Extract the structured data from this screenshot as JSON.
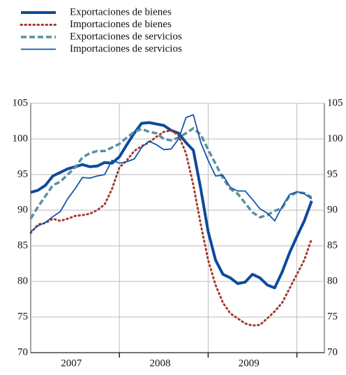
{
  "chart_data": {
    "type": "line",
    "categories": [
      null,
      null,
      null,
      null,
      null,
      null,
      "2007",
      null,
      null,
      null,
      null,
      null,
      null,
      null,
      null,
      null,
      null,
      null,
      "2008",
      null,
      null,
      null,
      null,
      null,
      null,
      null,
      null,
      null,
      null,
      null,
      "2009",
      null,
      null,
      null,
      null,
      null,
      null,
      null,
      null
    ],
    "series": [
      {
        "name": "Exportaciones de bienes",
        "color": "#0d4a9c",
        "line_width": 4,
        "line_style": "solid",
        "values": [
          92.5,
          92.8,
          93.5,
          94.8,
          95.3,
          95.8,
          96.1,
          96.4,
          96.1,
          96.2,
          96.7,
          96.6,
          97.5,
          99.2,
          100.8,
          102.2,
          102.3,
          102.1,
          101.9,
          101.2,
          100.8,
          99.5,
          98.4,
          93,
          87,
          83,
          81,
          80.5,
          79.7,
          79.9,
          81,
          80.5,
          79.5,
          79.1,
          81.3,
          84,
          86.3,
          88.5,
          91.3
        ]
      },
      {
        "name": "Importaciones de bienes",
        "color": "#a33a2e",
        "line_width": 3,
        "line_style": "dotted",
        "values": [
          86.8,
          88,
          88.2,
          88.8,
          88.5,
          88.8,
          89.2,
          89.3,
          89.5,
          90,
          90.8,
          93,
          96,
          97,
          98.3,
          99,
          99.5,
          100.3,
          101,
          101.2,
          100.5,
          98,
          93.5,
          88,
          83,
          79.5,
          77,
          75.5,
          74.8,
          74.1,
          73.8,
          73.9,
          74.8,
          75.8,
          77,
          79,
          81,
          83,
          86
        ]
      },
      {
        "name": "Exportaciones de servicios",
        "color": "#5a8fa0",
        "line_width": 3.5,
        "line_style": "dashed",
        "values": [
          88.8,
          90.5,
          92,
          93.5,
          94,
          95,
          96,
          97.4,
          98,
          98.3,
          98.3,
          98.8,
          99.3,
          100.2,
          101,
          101.4,
          101,
          100.8,
          100,
          99.8,
          100.2,
          100.8,
          101.5,
          100.6,
          98.5,
          96.5,
          94.5,
          93,
          92.3,
          91,
          89.7,
          89,
          89.3,
          89.9,
          90.3,
          92,
          92.5,
          92.4,
          91.8
        ]
      },
      {
        "name": "Importaciones de servicios",
        "color": "#1555a8",
        "line_width": 1.8,
        "line_style": "solid",
        "values": [
          87,
          87.8,
          88.3,
          89.1,
          89.8,
          91.6,
          93,
          94.6,
          94.5,
          94.8,
          95,
          97,
          96.6,
          96.8,
          97.2,
          98.8,
          99.7,
          99.2,
          98.5,
          98.6,
          100,
          103,
          103.4,
          99.5,
          97,
          94.8,
          94.9,
          93.2,
          92.7,
          92.7,
          91.5,
          90.2,
          89.6,
          88.5,
          90.5,
          92.2,
          92.6,
          92.3,
          91.6
        ]
      }
    ],
    "ylim": [
      70,
      105
    ],
    "yticks": [
      70,
      75,
      80,
      85,
      90,
      95,
      100,
      105
    ],
    "grid": true
  }
}
